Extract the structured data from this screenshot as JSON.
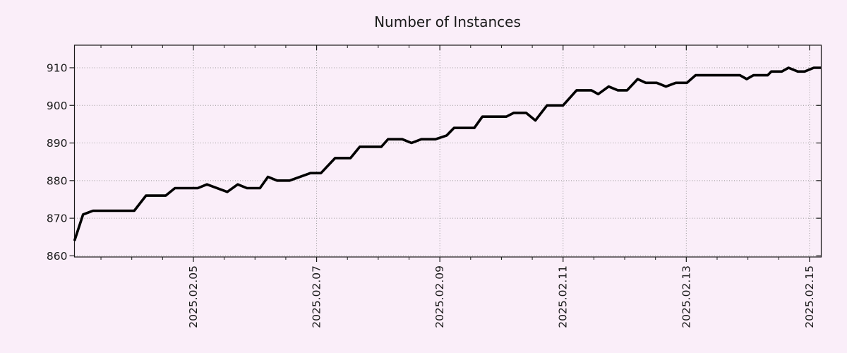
{
  "page": {
    "background": "#faeef9"
  },
  "chart_data": {
    "type": "line",
    "title": "Number of Instances",
    "x_unit": "day of February 2025 (fractional)",
    "xlim": [
      3.07,
      15.19
    ],
    "ylim": [
      859.7,
      916
    ],
    "grid": "dotted",
    "legend_position": "none",
    "x_major_ticks": [
      {
        "day": 5,
        "label": "2025.02.05"
      },
      {
        "day": 7,
        "label": "2025.02.07"
      },
      {
        "day": 9,
        "label": "2025.02.09"
      },
      {
        "day": 11,
        "label": "2025.02.11"
      },
      {
        "day": 13,
        "label": "2025.02.13"
      },
      {
        "day": 15,
        "label": "2025.02.15"
      }
    ],
    "x_minor_tick_step_days": 0.5,
    "y_ticks": [
      860,
      870,
      880,
      890,
      900,
      910
    ],
    "colors": {
      "line": "#000000",
      "grid": "#999999",
      "axis": "#1a1a1a",
      "text": "#1a1a1a",
      "background": "#faeef9"
    },
    "series": [
      {
        "name": "Number of Instances",
        "color": "#000000",
        "points": [
          [
            3.07,
            864
          ],
          [
            3.21,
            871
          ],
          [
            3.37,
            872
          ],
          [
            4.04,
            872
          ],
          [
            4.23,
            876
          ],
          [
            4.55,
            876
          ],
          [
            4.7,
            878
          ],
          [
            5.07,
            878
          ],
          [
            5.22,
            879
          ],
          [
            5.55,
            877
          ],
          [
            5.72,
            879
          ],
          [
            5.87,
            878
          ],
          [
            6.08,
            878
          ],
          [
            6.21,
            881
          ],
          [
            6.36,
            880
          ],
          [
            6.56,
            880
          ],
          [
            6.9,
            882
          ],
          [
            7.07,
            882
          ],
          [
            7.3,
            886
          ],
          [
            7.55,
            886
          ],
          [
            7.7,
            889
          ],
          [
            8.05,
            889
          ],
          [
            8.16,
            891
          ],
          [
            8.39,
            891
          ],
          [
            8.54,
            890
          ],
          [
            8.7,
            891
          ],
          [
            8.93,
            891
          ],
          [
            9.11,
            892
          ],
          [
            9.23,
            894
          ],
          [
            9.56,
            894
          ],
          [
            9.69,
            897
          ],
          [
            10.08,
            897
          ],
          [
            10.2,
            898
          ],
          [
            10.4,
            898
          ],
          [
            10.55,
            896
          ],
          [
            10.74,
            900
          ],
          [
            11.0,
            900
          ],
          [
            11.22,
            904
          ],
          [
            11.46,
            904
          ],
          [
            11.57,
            903
          ],
          [
            11.74,
            905
          ],
          [
            11.89,
            904
          ],
          [
            12.04,
            904
          ],
          [
            12.21,
            907
          ],
          [
            12.34,
            906
          ],
          [
            12.52,
            906
          ],
          [
            12.67,
            905
          ],
          [
            12.83,
            906
          ],
          [
            13.01,
            906
          ],
          [
            13.15,
            908
          ],
          [
            13.87,
            908
          ],
          [
            13.98,
            907
          ],
          [
            14.09,
            908
          ],
          [
            14.32,
            908
          ],
          [
            14.38,
            909
          ],
          [
            14.55,
            909
          ],
          [
            14.66,
            910
          ],
          [
            14.81,
            909
          ],
          [
            14.92,
            909
          ],
          [
            15.07,
            910
          ],
          [
            15.19,
            910
          ]
        ]
      }
    ]
  }
}
